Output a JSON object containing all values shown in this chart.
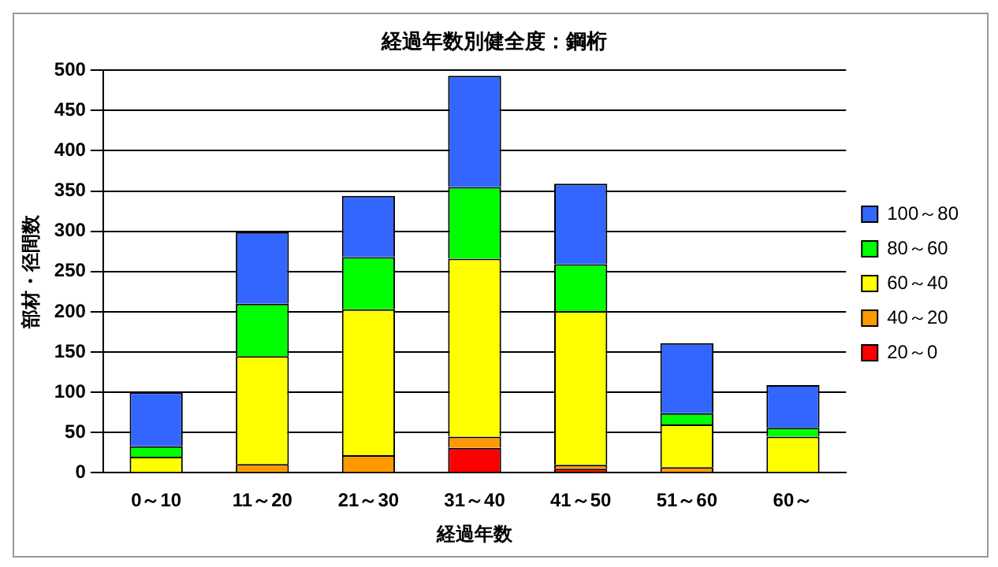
{
  "chart_data": {
    "type": "bar",
    "title": "経過年数別健全度：鋼桁",
    "xlabel": "経過年数",
    "ylabel": "部材・径間数",
    "categories": [
      "0～10",
      "11～20",
      "21～30",
      "31～40",
      "41～50",
      "51～60",
      "60～"
    ],
    "stacked": true,
    "ylim": [
      0,
      500
    ],
    "yticks": [
      0,
      50,
      100,
      150,
      200,
      250,
      300,
      350,
      400,
      450,
      500
    ],
    "grid": "y",
    "legend": "right",
    "series": [
      {
        "name": "20～0",
        "color": "#ff0000",
        "values": [
          0,
          0,
          0,
          31,
          5,
          0,
          null
        ]
      },
      {
        "name": "40～20",
        "color": "#ff9900",
        "values": [
          0,
          11,
          22,
          14,
          5,
          7,
          0
        ]
      },
      {
        "name": "60～40",
        "color": "#ffff00",
        "values": [
          20,
          134,
          181,
          221,
          191,
          53,
          45
        ]
      },
      {
        "name": "80～60",
        "color": "#00ff00",
        "values": [
          13,
          65,
          65,
          89,
          58,
          14,
          11
        ]
      },
      {
        "name": "100～80",
        "color": "#3366ff",
        "values": [
          67,
          89,
          76,
          138,
          100,
          87,
          53
        ]
      }
    ]
  }
}
